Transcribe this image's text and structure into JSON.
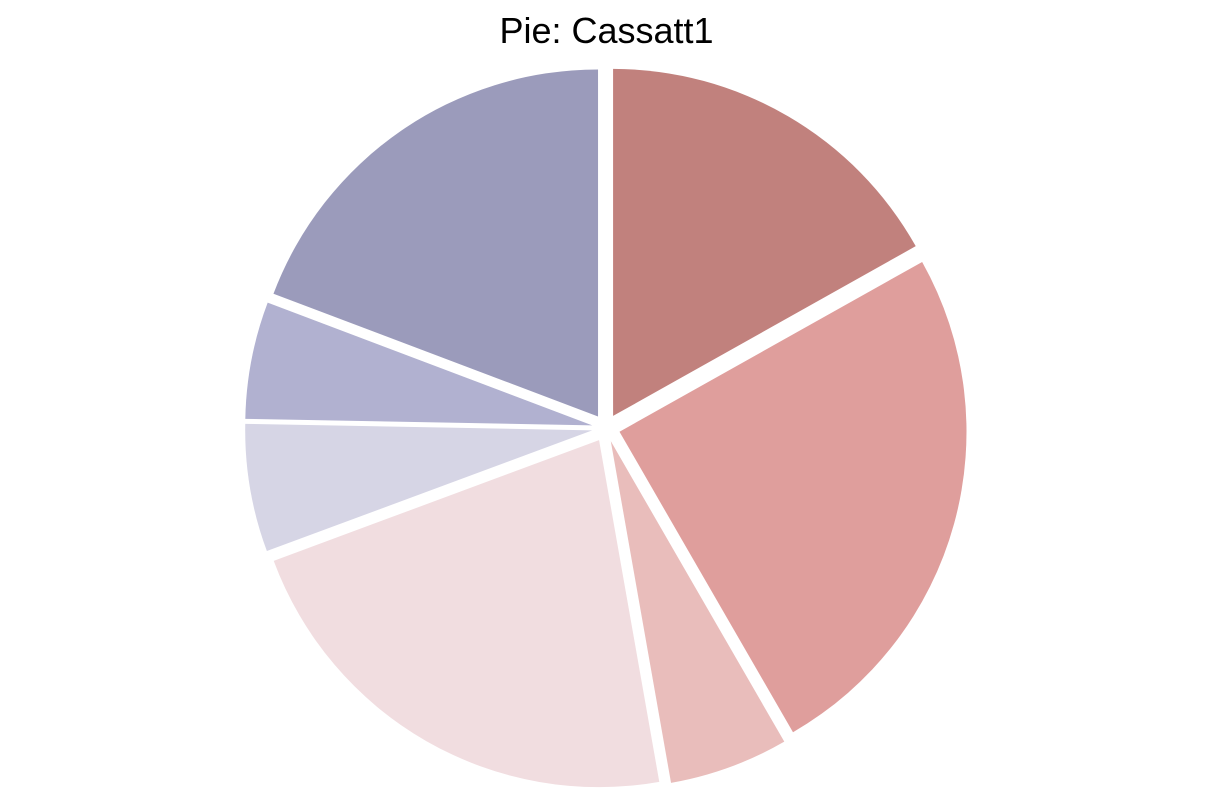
{
  "chart_data": {
    "type": "pie",
    "title": "Pie: Cassatt1",
    "start": "top",
    "direction": "clockwise",
    "exploded": true,
    "labels_shown": false,
    "legend": "none",
    "slices": [
      {
        "value": 17.0,
        "color": "#c1817d"
      },
      {
        "value": 25.0,
        "color": "#df9e9c"
      },
      {
        "value": 5.6,
        "color": "#e9bdbb"
      },
      {
        "value": 22.3,
        "color": "#f1dde0"
      },
      {
        "value": 6.0,
        "color": "#d6d5e5"
      },
      {
        "value": 5.5,
        "color": "#b1b1d0"
      },
      {
        "value": 19.4,
        "color": "#9b9bbb"
      }
    ]
  }
}
